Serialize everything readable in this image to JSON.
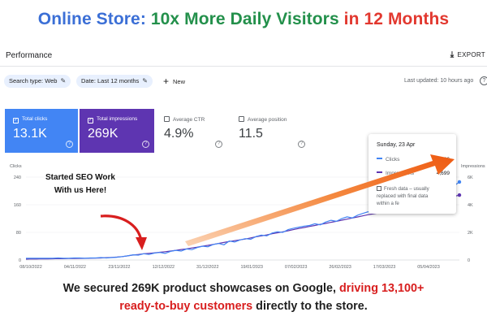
{
  "headline": {
    "part_a": "Online Store:",
    "part_b": " 10x More Daily Visitors",
    "part_c": " in 12 Months"
  },
  "header": {
    "title": "Performance",
    "export_label": "EXPORT",
    "export_icon": "download-icon"
  },
  "filters": {
    "search_type": "Search type: Web",
    "date": "Date: Last 12 months",
    "new_label": "New",
    "last_updated": "Last updated: 10 hours ago"
  },
  "metrics": [
    {
      "label": "Total clicks",
      "value": "13.1K",
      "checked": true,
      "color": "#4285f4"
    },
    {
      "label": "Total impressions",
      "value": "269K",
      "checked": true,
      "color": "#5e35b1"
    },
    {
      "label": "Average CTR",
      "value": "4.9%",
      "checked": false
    },
    {
      "label": "Average position",
      "value": "11.5",
      "checked": false
    }
  ],
  "tooltip": {
    "date": "Sunday, 23 Apr",
    "clicks_label": "Clicks",
    "clicks_value": "226",
    "impr_label": "Impressions",
    "impr_value": "4,699",
    "fresh_l1": "Fresh data – usually",
    "fresh_l2": "replaced with final data",
    "fresh_l3": "within a fe"
  },
  "annotation": {
    "line1": "Started SEO Work",
    "line2": "With us Here!"
  },
  "caption": {
    "line1_normal": "We secured 269K product showcases on Google, ",
    "line1_red": "driving 13,100+",
    "line2_red": "ready-to-buy customers",
    "line2_normal": " directly to the store."
  },
  "chart_data": {
    "type": "line",
    "title": "",
    "xlabel": "",
    "ylabel": "Clicks",
    "ylabel_right": "Impressions",
    "ylim": [
      0,
      240
    ],
    "ylim_right": [
      0,
      6000
    ],
    "yticks": [
      "0",
      "80",
      "160",
      "240"
    ],
    "yticks_right": [
      "0",
      "2K",
      "4K",
      "6K"
    ],
    "xticks": [
      "08/10/2022",
      "04/11/2022",
      "23/11/2022",
      "12/12/2022",
      "31/12/2022",
      "19/01/2023",
      "07/02/2023",
      "26/02/2023",
      "17/03/2023",
      "05/04/2023"
    ],
    "series": [
      {
        "name": "Clicks",
        "color": "#4285f4",
        "values": [
          5,
          5,
          5,
          5,
          5,
          5,
          6,
          5,
          5,
          6,
          6,
          5,
          6,
          6,
          7,
          6,
          7,
          8,
          10,
          12,
          15,
          14,
          18,
          16,
          20,
          22,
          19,
          25,
          28,
          26,
          32,
          30,
          36,
          40,
          38,
          45,
          48,
          44,
          55,
          52,
          58,
          62,
          60,
          68,
          72,
          70,
          78,
          82,
          80,
          88,
          92,
          95,
          98,
          100,
          105,
          102,
          110,
          115,
          112,
          120,
          125,
          122,
          130,
          135,
          140,
          138,
          145,
          150,
          155,
          160,
          158,
          165,
          170,
          168,
          178,
          182,
          190,
          195,
          200,
          205,
          215,
          226
        ]
      },
      {
        "name": "Impressions",
        "color": "#5e35b1",
        "values": [
          60,
          80,
          70,
          90,
          85,
          90,
          100,
          95,
          110,
          105,
          115,
          120,
          130,
          140,
          150,
          170,
          190,
          210,
          250,
          300,
          360,
          400,
          450,
          480,
          520,
          560,
          600,
          650,
          700,
          760,
          800,
          870,
          930,
          1000,
          1060,
          1130,
          1200,
          1270,
          1340,
          1400,
          1460,
          1520,
          1600,
          1680,
          1750,
          1820,
          1900,
          1970,
          2040,
          2120,
          2200,
          2280,
          2350,
          2430,
          2500,
          2580,
          2650,
          2730,
          2800,
          2880,
          2960,
          3040,
          3120,
          3200,
          3280,
          3350,
          3420,
          3500,
          3580,
          3650,
          3720,
          3800,
          3880,
          3950,
          4020,
          4100,
          4200,
          4300,
          4400,
          4500,
          4600,
          4699
        ]
      }
    ]
  },
  "colors": {
    "clicks": "#4285f4",
    "impressions": "#5e35b1",
    "arrow_orange": "#ef6a1e",
    "arrow_red": "#d81e1e",
    "headline_blue": "#3b6fd6",
    "headline_green": "#23904b",
    "headline_red": "#e2382f"
  }
}
